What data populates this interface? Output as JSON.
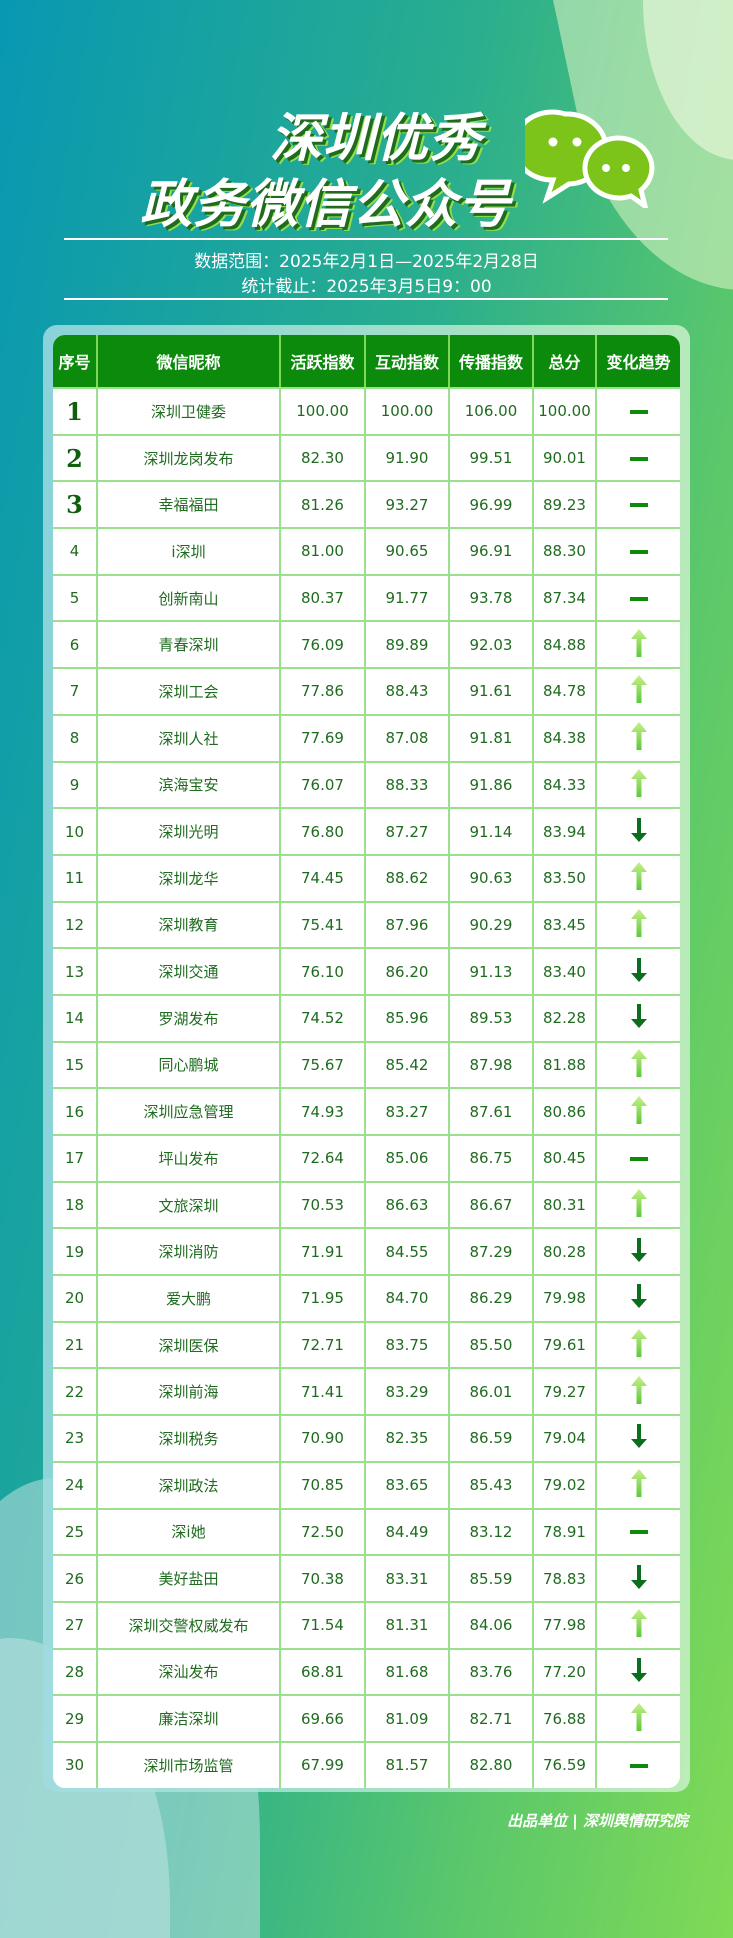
{
  "header": {
    "title_line1": "深圳优秀",
    "title_line2": "政务微信公众号",
    "data_range": "数据范围：2025年2月1日—2025年2月28日",
    "cutoff": "统计截止：2025年3月5日9：00",
    "icon": "wechat-icon"
  },
  "colors": {
    "header_bg": "#0b8a0b",
    "text": "#1f6b1f",
    "border": "#9be08a",
    "up": "#8fe04a",
    "down": "#0b6e1e"
  },
  "table": {
    "columns": [
      "序号",
      "微信昵称",
      "活跃指数",
      "互动指数",
      "传播指数",
      "总分",
      "变化趋势"
    ],
    "rows": [
      [
        "1",
        "深圳卫健委",
        "100.00",
        "100.00",
        "106.00",
        "100.00",
        "flat"
      ],
      [
        "2",
        "深圳龙岗发布",
        "82.30",
        "91.90",
        "99.51",
        "90.01",
        "flat"
      ],
      [
        "3",
        "幸福福田",
        "81.26",
        "93.27",
        "96.99",
        "89.23",
        "flat"
      ],
      [
        "4",
        "i深圳",
        "81.00",
        "90.65",
        "96.91",
        "88.30",
        "flat"
      ],
      [
        "5",
        "创新南山",
        "80.37",
        "91.77",
        "93.78",
        "87.34",
        "flat"
      ],
      [
        "6",
        "青春深圳",
        "76.09",
        "89.89",
        "92.03",
        "84.88",
        "up"
      ],
      [
        "7",
        "深圳工会",
        "77.86",
        "88.43",
        "91.61",
        "84.78",
        "up"
      ],
      [
        "8",
        "深圳人社",
        "77.69",
        "87.08",
        "91.81",
        "84.38",
        "up"
      ],
      [
        "9",
        "滨海宝安",
        "76.07",
        "88.33",
        "91.86",
        "84.33",
        "up"
      ],
      [
        "10",
        "深圳光明",
        "76.80",
        "87.27",
        "91.14",
        "83.94",
        "down"
      ],
      [
        "11",
        "深圳龙华",
        "74.45",
        "88.62",
        "90.63",
        "83.50",
        "up"
      ],
      [
        "12",
        "深圳教育",
        "75.41",
        "87.96",
        "90.29",
        "83.45",
        "up"
      ],
      [
        "13",
        "深圳交通",
        "76.10",
        "86.20",
        "91.13",
        "83.40",
        "down"
      ],
      [
        "14",
        "罗湖发布",
        "74.52",
        "85.96",
        "89.53",
        "82.28",
        "down"
      ],
      [
        "15",
        "同心鹏城",
        "75.67",
        "85.42",
        "87.98",
        "81.88",
        "up"
      ],
      [
        "16",
        "深圳应急管理",
        "74.93",
        "83.27",
        "87.61",
        "80.86",
        "up"
      ],
      [
        "17",
        "坪山发布",
        "72.64",
        "85.06",
        "86.75",
        "80.45",
        "flat"
      ],
      [
        "18",
        "文旅深圳",
        "70.53",
        "86.63",
        "86.67",
        "80.31",
        "up"
      ],
      [
        "19",
        "深圳消防",
        "71.91",
        "84.55",
        "87.29",
        "80.28",
        "down"
      ],
      [
        "20",
        "爱大鹏",
        "71.95",
        "84.70",
        "86.29",
        "79.98",
        "down"
      ],
      [
        "21",
        "深圳医保",
        "72.71",
        "83.75",
        "85.50",
        "79.61",
        "up"
      ],
      [
        "22",
        "深圳前海",
        "71.41",
        "83.29",
        "86.01",
        "79.27",
        "up"
      ],
      [
        "23",
        "深圳税务",
        "70.90",
        "82.35",
        "86.59",
        "79.04",
        "down"
      ],
      [
        "24",
        "深圳政法",
        "70.85",
        "83.65",
        "85.43",
        "79.02",
        "up"
      ],
      [
        "25",
        "深i她",
        "72.50",
        "84.49",
        "83.12",
        "78.91",
        "flat"
      ],
      [
        "26",
        "美好盐田",
        "70.38",
        "83.31",
        "85.59",
        "78.83",
        "down"
      ],
      [
        "27",
        "深圳交警权威发布",
        "71.54",
        "81.31",
        "84.06",
        "77.98",
        "up"
      ],
      [
        "28",
        "深汕发布",
        "68.81",
        "81.68",
        "83.76",
        "77.20",
        "down"
      ],
      [
        "29",
        "廉洁深圳",
        "69.66",
        "81.09",
        "82.71",
        "76.88",
        "up"
      ],
      [
        "30",
        "深圳市场监管",
        "67.99",
        "81.57",
        "82.80",
        "76.59",
        "flat"
      ]
    ]
  },
  "footer": {
    "text": "出品单位 | 深圳舆情研究院"
  }
}
